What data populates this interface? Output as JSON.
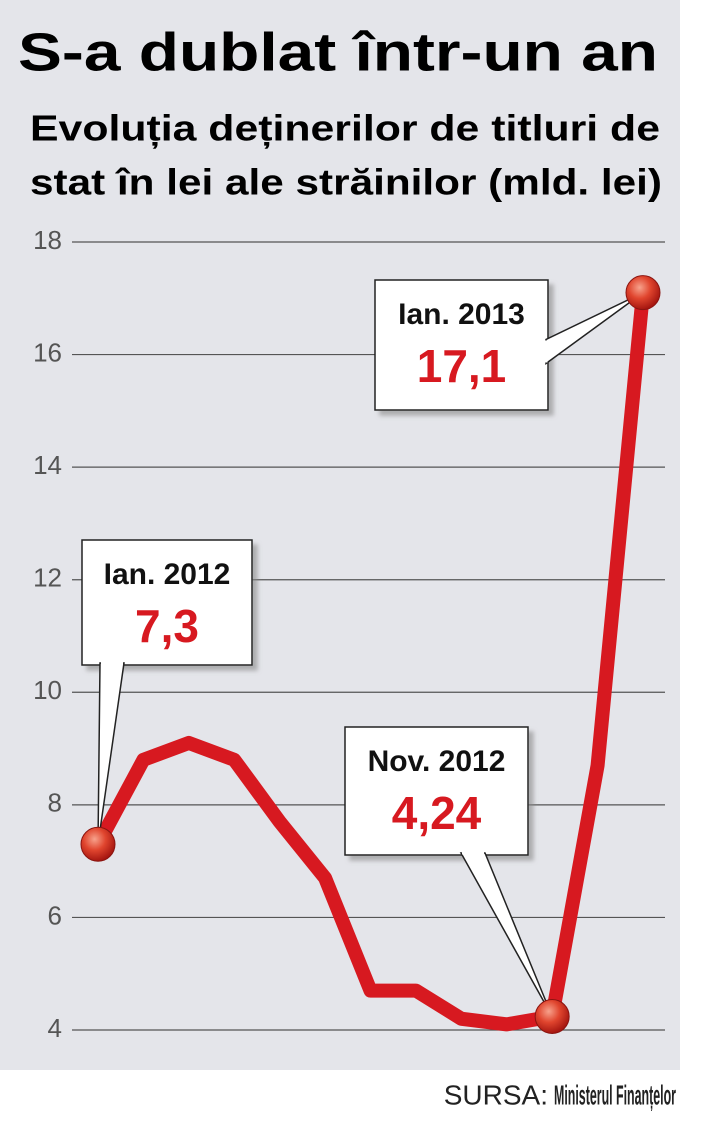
{
  "chart_data": {
    "type": "line",
    "title": "S-a dublat într-un an",
    "subtitle": [
      "Evoluția deținerilor de titluri de",
      "stat în lei ale străinilor (mld. lei)"
    ],
    "categories": [
      "Ian. 2012",
      null,
      null,
      null,
      null,
      null,
      null,
      null,
      null,
      null,
      "Nov. 2012",
      null,
      "Ian. 2013"
    ],
    "values": [
      7.3,
      8.8,
      9.1,
      8.8,
      7.7,
      6.7,
      4.7,
      4.7,
      4.2,
      4.1,
      4.24,
      8.7,
      17.1
    ],
    "value_labels": [
      "7,3",
      null,
      null,
      null,
      null,
      null,
      null,
      null,
      null,
      null,
      "4,24",
      null,
      "17,1"
    ],
    "color": "#d71920",
    "ylim": [
      4,
      18
    ],
    "yticks": [
      4,
      6,
      8,
      10,
      12,
      14,
      16,
      18
    ],
    "grid": true,
    "source_label": "SURSA:",
    "source": "Ministerul Finanțelor"
  }
}
